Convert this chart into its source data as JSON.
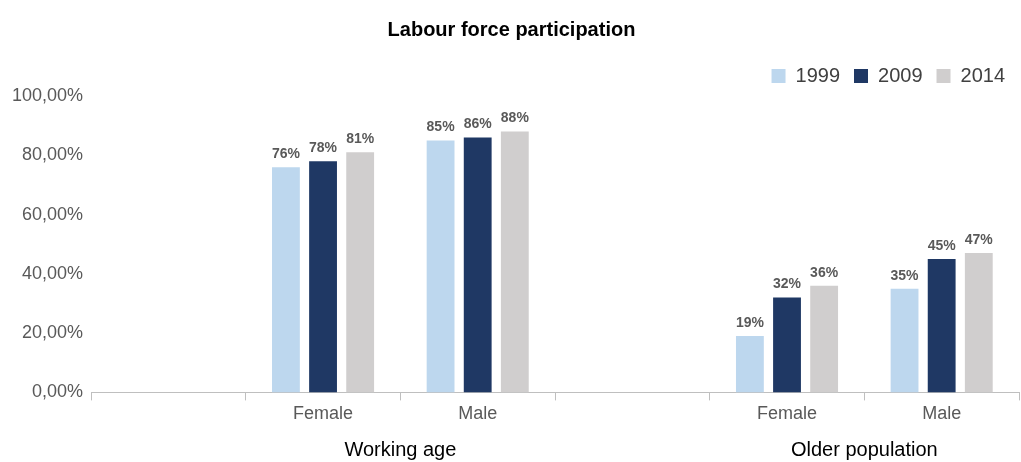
{
  "chart_data": {
    "type": "bar",
    "title": "Labour force participation",
    "categories": [
      null,
      "Female",
      "Male",
      null,
      "Female",
      "Male"
    ],
    "series": [
      {
        "name": "1999",
        "color": "#bdd7ee",
        "values": [
          null,
          76,
          85,
          null,
          19,
          35
        ],
        "value_labels": [
          null,
          "76%",
          "85%",
          null,
          "19%",
          "35%"
        ]
      },
      {
        "name": "2009",
        "color": "#1f3864",
        "values": [
          null,
          78,
          86,
          null,
          32,
          45
        ],
        "value_labels": [
          null,
          "78%",
          "86%",
          null,
          "32%",
          "45%"
        ]
      },
      {
        "name": "2014",
        "color": "#d0cece",
        "values": [
          null,
          81,
          88,
          null,
          36,
          47
        ],
        "value_labels": [
          null,
          "81%",
          "88%",
          null,
          "36%",
          "47%"
        ]
      }
    ],
    "ylim": [
      0,
      100
    ],
    "yticks": [
      {
        "value": 0,
        "label": "0,00%"
      },
      {
        "value": 20,
        "label": "20,00%"
      },
      {
        "value": 40,
        "label": "40,00%"
      },
      {
        "value": 60,
        "label": "60,00%"
      },
      {
        "value": 80,
        "label": "80,00%"
      },
      {
        "value": 100,
        "label": "100,00%"
      }
    ],
    "grid": false,
    "legend": "top right",
    "annotations": [
      "Working age",
      "Older population"
    ]
  }
}
